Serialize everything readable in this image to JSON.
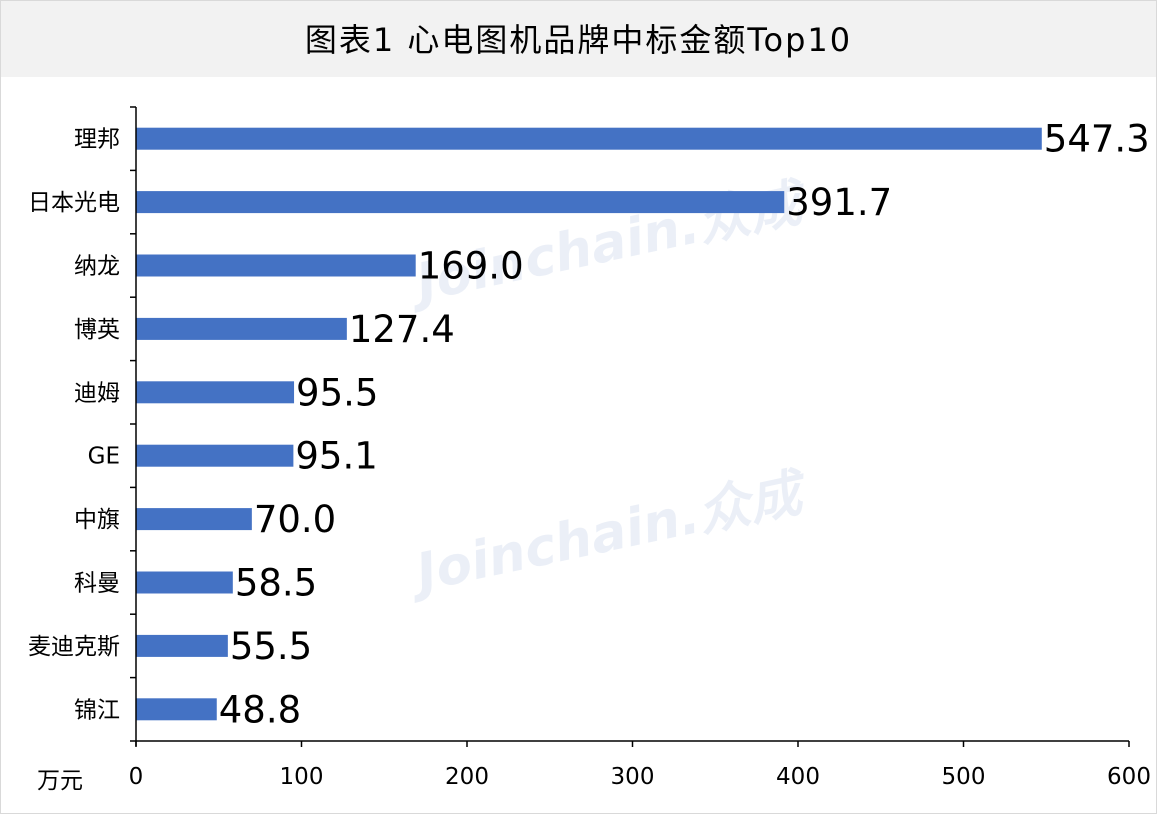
{
  "title": "图表1  心电图机品牌中标金额Top10",
  "watermark": "Joinchain.众成",
  "colors": {
    "bar": "#4472c4",
    "title_bg": "#f2f2f2",
    "axis": "#000000"
  },
  "chart_data": {
    "type": "bar",
    "orientation": "horizontal",
    "title": "图表1  心电图机品牌中标金额Top10",
    "categories": [
      "理邦",
      "日本光电",
      "纳龙",
      "博英",
      "迪姆",
      "GE",
      "中旗",
      "科曼",
      "麦迪克斯",
      "锦江"
    ],
    "values": [
      547.3,
      391.7,
      169.0,
      127.4,
      95.5,
      95.1,
      70.0,
      58.5,
      55.5,
      48.8
    ],
    "value_labels": [
      "547.3",
      "391.7",
      "169.0",
      "127.4",
      "95.5",
      "95.1",
      "70.0",
      "58.5",
      "55.5",
      "48.8"
    ],
    "xlabel": "万元",
    "xlim": [
      0,
      600
    ],
    "xticks": [
      0,
      100,
      200,
      300,
      400,
      500,
      600
    ],
    "grid": false,
    "legend": "none"
  }
}
